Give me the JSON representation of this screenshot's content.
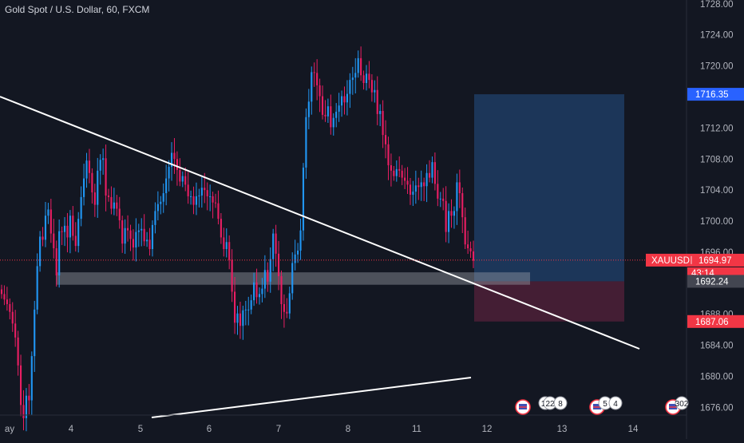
{
  "header": {
    "title": "Gold Spot / U.S. Dollar, 60, FXCM"
  },
  "price_axis": {
    "ticks": [
      "1728.00",
      "1724.00",
      "1720.00",
      "1716.00",
      "1712.00",
      "1708.00",
      "1704.00",
      "1700.00",
      "1696.00",
      "1692.00",
      "1688.00",
      "1684.00",
      "1680.00",
      "1676.00"
    ],
    "tick_values": [
      1728,
      1724,
      1720,
      1716,
      1712,
      1708,
      1704,
      1700,
      1696,
      1692,
      1688,
      1684,
      1680,
      1676
    ]
  },
  "time_axis": {
    "labels": [
      "ay",
      "4",
      "5",
      "6",
      "7",
      "8",
      "11",
      "12",
      "13",
      "14"
    ]
  },
  "price_labels": {
    "target": {
      "value": "1716.35",
      "color": "#2962ff"
    },
    "current_symbol": "XAUUSD",
    "current_value": "1694.97",
    "current_color": "#f23645",
    "countdown": "43:14",
    "entry": {
      "value": "1692.24",
      "color": "#434651"
    },
    "stop": {
      "value": "1687.06",
      "color": "#f23645"
    }
  },
  "event_badges": [
    {
      "texts": [
        "11",
        "22",
        "8"
      ]
    },
    {
      "texts": [
        "5",
        "4"
      ]
    },
    {
      "texts": [
        "302"
      ]
    }
  ],
  "chart_data": {
    "type": "candlestick",
    "symbol": "XAUUSD",
    "interval": "60",
    "y_range": [
      1674.5,
      1729.5
    ],
    "colors": {
      "up": "#2196f3",
      "down": "#e91e63",
      "background": "#131722",
      "trendline": "#ffffff"
    },
    "position": {
      "type": "long",
      "entry": 1692.24,
      "target": 1716.35,
      "stop": 1687.06
    },
    "trendlines": [
      {
        "from": [
          "3-May",
          1713.2
        ],
        "to": [
          "14-May",
          1684.0
        ]
      },
      {
        "from": [
          "5-May",
          1674.5
        ],
        "to": [
          "12-May",
          1679.8
        ]
      }
    ],
    "support_zone": [
      1691.8,
      1693.4
    ],
    "closes": [
      1690.6,
      1689.9,
      1689.3,
      1688.3,
      1686.8,
      1685.0,
      1681.4,
      1676.3,
      1674.6,
      1677.5,
      1676.9,
      1682.6,
      1688.6,
      1694.2,
      1698.0,
      1697.6,
      1700.7,
      1701.5,
      1698.4,
      1696.5,
      1693.0,
      1698.7,
      1698.6,
      1699.4,
      1697.9,
      1700.7,
      1698.1,
      1696.8,
      1700.3,
      1703.1,
      1705.5,
      1707.8,
      1706.2,
      1703.7,
      1702.1,
      1706.5,
      1707.9,
      1708.1,
      1703.3,
      1703.1,
      1701.6,
      1702.4,
      1701.6,
      1700.1,
      1697.1,
      1699.1,
      1698.8,
      1697.7,
      1696.6,
      1698.6,
      1698.8,
      1699.0,
      1697.4,
      1697.6,
      1696.4,
      1699.5,
      1701.3,
      1702.2,
      1702.5,
      1703.6,
      1705.5,
      1707.0,
      1708.8,
      1708.0,
      1706.6,
      1705.1,
      1705.8,
      1704.7,
      1703.2,
      1703.2,
      1702.1,
      1703.2,
      1703.3,
      1704.3,
      1704.0,
      1703.2,
      1703.2,
      1702.4,
      1702.3,
      1700.3,
      1697.9,
      1696.4,
      1697.3,
      1695.0,
      1690.9,
      1686.9,
      1688.1,
      1686.5,
      1688.5,
      1688.6,
      1688.6,
      1689.8,
      1692.1,
      1690.2,
      1690.6,
      1691.3,
      1693.7,
      1692.2,
      1695.1,
      1698.4,
      1695.8,
      1692.9,
      1689.3,
      1688.3,
      1688.1,
      1690.7,
      1694.6,
      1695.7,
      1696.2,
      1698.8,
      1706.9,
      1713.4,
      1715.4,
      1719.2,
      1719.1,
      1717.5,
      1716.1,
      1713.7,
      1713.5,
      1714.8,
      1712.1,
      1713.3,
      1714.1,
      1714.9,
      1716.1,
      1715.3,
      1716.4,
      1718.2,
      1718.5,
      1719.1,
      1721.0,
      1718.8,
      1717.8,
      1719.0,
      1718.2,
      1716.6,
      1716.9,
      1713.8,
      1714.2,
      1711.1,
      1709.9,
      1707.2,
      1706.5,
      1705.8,
      1706.7,
      1706.5,
      1705.6,
      1705.2,
      1704.7,
      1703.4,
      1703.8,
      1704.6,
      1704.4,
      1705.0,
      1704.5,
      1706.2,
      1705.6,
      1707.6,
      1704.8,
      1702.9,
      1702.9,
      1702.6,
      1698.6,
      1701.3,
      1700.7,
      1701.3,
      1705.0,
      1703.6,
      1700.5,
      1697.0,
      1696.5,
      1696.1,
      1694.9
    ]
  }
}
